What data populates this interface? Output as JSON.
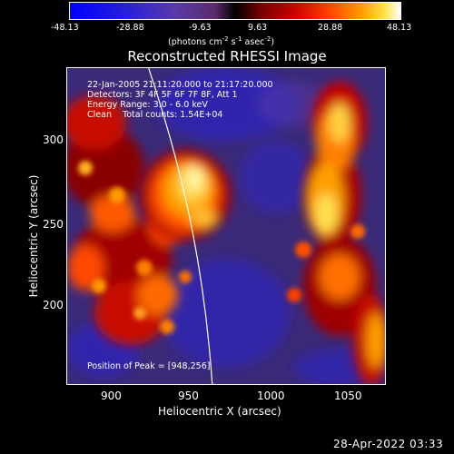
{
  "colorbar": {
    "ticks": [
      "-48.13",
      "-28.88",
      "-9.63",
      "9.63",
      "28.88",
      "48.13"
    ],
    "unit_main": "(photons cm",
    "unit_sup1": "-2",
    "unit_mid": " s",
    "unit_sup2": "-1",
    "unit_end": " asec",
    "unit_sup3": "-2",
    "unit_close": ")"
  },
  "title": "Reconstructed RHESSI Image",
  "annotations": {
    "time": "22-Jan-2005 21:11:20.000 to 21:17:20.000",
    "detectors": "Detectors: 3F 4F 5F 6F 7F 8F, Att 1",
    "energy": "Energy Range: 3.0 - 6.0 keV",
    "clean": "Clean    Total counts: 1.54E+04",
    "peak": "Position of Peak = [948,256]"
  },
  "axes": {
    "xlabel": "Heliocentric X (arcsec)",
    "ylabel": "Heliocentric Y (arcsec)",
    "xticks": [
      "900",
      "950",
      "1000",
      "1050"
    ],
    "yticks": [
      "300",
      "250",
      "200"
    ]
  },
  "timestamp": "28-Apr-2022 03:33",
  "colors": {
    "negative": "#2a22d8",
    "background": "#3a2a78",
    "positive_low": "#c80000",
    "positive_mid": "#ff8a00",
    "positive_high": "#fff07a"
  }
}
